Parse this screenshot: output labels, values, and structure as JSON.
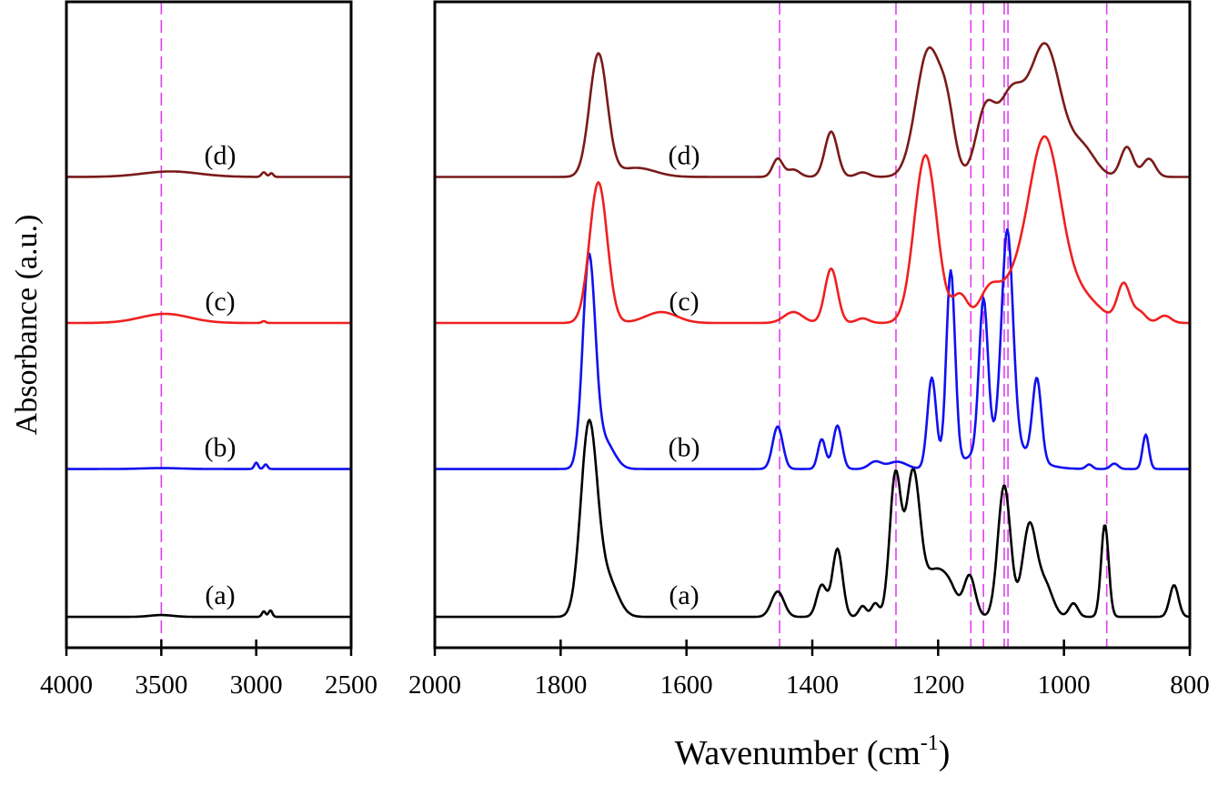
{
  "chart_data": {
    "type": "line",
    "title": "",
    "xlabel": "Wavenumber (cm",
    "xlabel_sup": "-1",
    "xlabel_close": ")",
    "ylabel": "Absorbance (a.u.)",
    "ylim": [
      0,
      7.12
    ],
    "grid": false,
    "panels": [
      {
        "id": "left",
        "xlim": [
          4000,
          2500
        ],
        "xticks": [
          4000,
          3500,
          3000,
          2500
        ],
        "xtick_labels": [
          "4000",
          "3500",
          "3000",
          "2500"
        ],
        "reference_lines": [
          3500
        ]
      },
      {
        "id": "right",
        "xlim": [
          2000,
          800
        ],
        "xticks": [
          2000,
          1800,
          1600,
          1400,
          1200,
          1000,
          800
        ],
        "xtick_labels": [
          "2000",
          "1800",
          "1600",
          "1400",
          "1200",
          "1000",
          "800"
        ],
        "reference_lines": [
          1452,
          1267,
          1148,
          1128,
          1095,
          1089,
          932
        ]
      }
    ],
    "reference_line_color": "#e040f0",
    "series": [
      {
        "name": "(a)",
        "color": "#000000",
        "baseline": 0.34,
        "left_peaks": [
          [
            3500,
            0.02,
            60
          ],
          [
            2960,
            0.06,
            10
          ],
          [
            2925,
            0.07,
            10
          ]
        ],
        "right_peaks": [
          [
            1755,
            2.1,
            13
          ],
          [
            1725,
            0.4,
            16
          ],
          [
            1455,
            0.28,
            10
          ],
          [
            1385,
            0.35,
            8
          ],
          [
            1360,
            0.75,
            8
          ],
          [
            1320,
            0.12,
            6
          ],
          [
            1300,
            0.15,
            6
          ],
          [
            1268,
            1.55,
            9
          ],
          [
            1240,
            1.55,
            11
          ],
          [
            1205,
            0.5,
            18
          ],
          [
            1180,
            0.2,
            12
          ],
          [
            1150,
            0.45,
            9
          ],
          [
            1095,
            1.45,
            10
          ],
          [
            1055,
            1.0,
            11
          ],
          [
            1030,
            0.35,
            12
          ],
          [
            985,
            0.15,
            7
          ],
          [
            935,
            1.02,
            6
          ],
          [
            825,
            0.35,
            7
          ]
        ]
      },
      {
        "name": "(b)",
        "color": "#1010f0",
        "baseline": 1.97,
        "left_peaks": [
          [
            3500,
            0.01,
            100
          ],
          [
            3000,
            0.07,
            10
          ],
          [
            2950,
            0.05,
            10
          ]
        ],
        "right_peaks": [
          [
            1755,
            2.3,
            10
          ],
          [
            1730,
            0.3,
            15
          ],
          [
            1455,
            0.47,
            8
          ],
          [
            1385,
            0.33,
            6
          ],
          [
            1360,
            0.48,
            7
          ],
          [
            1300,
            0.08,
            10
          ],
          [
            1265,
            0.08,
            15
          ],
          [
            1210,
            1.0,
            7
          ],
          [
            1180,
            2.15,
            7
          ],
          [
            1128,
            1.65,
            7
          ],
          [
            1090,
            2.35,
            9
          ],
          [
            1100,
            0.3,
            40
          ],
          [
            1043,
            0.9,
            7
          ],
          [
            960,
            0.05,
            5
          ],
          [
            920,
            0.06,
            6
          ],
          [
            870,
            0.38,
            5
          ]
        ]
      },
      {
        "name": "(c)",
        "color": "#ee2020",
        "baseline": 3.58,
        "left_peaks": [
          [
            3480,
            0.1,
            130
          ],
          [
            2960,
            0.02,
            10
          ]
        ],
        "right_peaks": [
          [
            1740,
            1.55,
            14
          ],
          [
            1640,
            0.12,
            25
          ],
          [
            1430,
            0.12,
            15
          ],
          [
            1370,
            0.6,
            10
          ],
          [
            1320,
            0.05,
            10
          ],
          [
            1220,
            1.85,
            18
          ],
          [
            1165,
            0.3,
            12
          ],
          [
            1120,
            0.25,
            15
          ],
          [
            1080,
            0.4,
            30
          ],
          [
            1030,
            1.9,
            25
          ],
          [
            975,
            0.3,
            30
          ],
          [
            905,
            0.42,
            10
          ],
          [
            880,
            0.12,
            10
          ],
          [
            840,
            0.08,
            10
          ]
        ]
      },
      {
        "name": "(d)",
        "color": "#7a1a1a",
        "baseline": 5.19,
        "left_peaks": [
          [
            3450,
            0.06,
            150
          ],
          [
            2960,
            0.05,
            12
          ],
          [
            2920,
            0.04,
            10
          ]
        ],
        "right_peaks": [
          [
            1740,
            1.35,
            14
          ],
          [
            1680,
            0.1,
            30
          ],
          [
            1455,
            0.2,
            8
          ],
          [
            1430,
            0.08,
            10
          ],
          [
            1370,
            0.5,
            10
          ],
          [
            1320,
            0.05,
            10
          ],
          [
            1215,
            1.4,
            20
          ],
          [
            1185,
            0.5,
            12
          ],
          [
            1125,
            0.7,
            15
          ],
          [
            1085,
            0.85,
            20
          ],
          [
            1030,
            1.45,
            25
          ],
          [
            970,
            0.3,
            20
          ],
          [
            900,
            0.33,
            10
          ],
          [
            865,
            0.2,
            10
          ]
        ]
      }
    ]
  }
}
